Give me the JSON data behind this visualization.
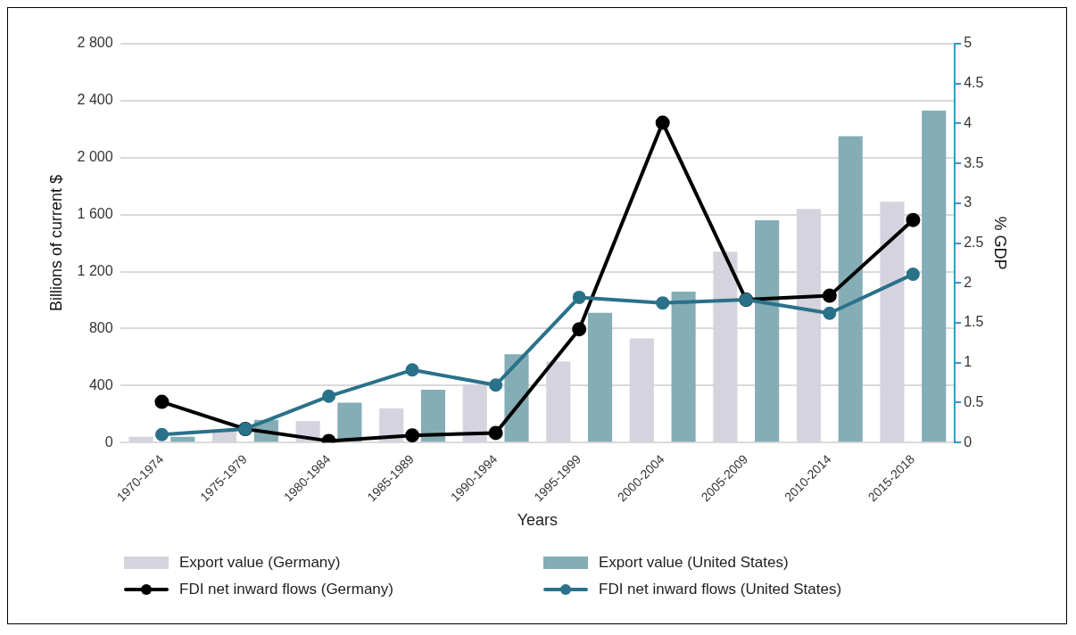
{
  "chart_data": {
    "type": "bar",
    "xlabel": "Years",
    "ylabel": "Billions of current $",
    "y2label": "% GDP",
    "categories": [
      "1970-1974",
      "1975-1979",
      "1980-1984",
      "1985-1989",
      "1990-1994",
      "1995-1999",
      "2000-2004",
      "2005-2009",
      "2010-2014",
      "2015-2018"
    ],
    "series": [
      {
        "name": "Export value (Germany)",
        "color": "#d5d3de",
        "values": [
          40,
          80,
          150,
          240,
          410,
          570,
          730,
          1340,
          1640,
          1690
        ]
      },
      {
        "name": "Export value (United States)",
        "color": "#84adb6",
        "values": [
          40,
          160,
          280,
          370,
          620,
          910,
          1060,
          1560,
          2150,
          2330
        ]
      },
      {
        "name": "FDI net inward flows (Germany)",
        "type": "line",
        "axis": "y2",
        "color": "#000000",
        "values": [
          0.51,
          0.17,
          0.02,
          0.09,
          0.12,
          1.42,
          4.01,
          1.79,
          1.84,
          2.79
        ]
      },
      {
        "name": "FDI net inward flows (United States)",
        "type": "line",
        "axis": "y2",
        "color": "#2a718a",
        "values": [
          0.1,
          0.17,
          0.58,
          0.91,
          0.72,
          1.82,
          1.75,
          1.79,
          1.62,
          2.11
        ]
      }
    ],
    "ylim": [
      0,
      2800
    ],
    "yticks": [
      {
        "value": 0,
        "label": "0"
      },
      {
        "value": 400,
        "label": "400"
      },
      {
        "value": 800,
        "label": "800"
      },
      {
        "value": 1200,
        "label": "1 200"
      },
      {
        "value": 1600,
        "label": "1 600"
      },
      {
        "value": 2000,
        "label": "2 000"
      },
      {
        "value": 2400,
        "label": "2 400"
      },
      {
        "value": 2800,
        "label": "2 800"
      }
    ],
    "y2lim": [
      0,
      5
    ],
    "y2ticks": [
      0,
      0.5,
      1,
      1.5,
      2,
      2.5,
      3,
      3.5,
      4,
      4.5,
      5
    ],
    "grid": "y",
    "legend": "bottom",
    "marker": "circle"
  }
}
